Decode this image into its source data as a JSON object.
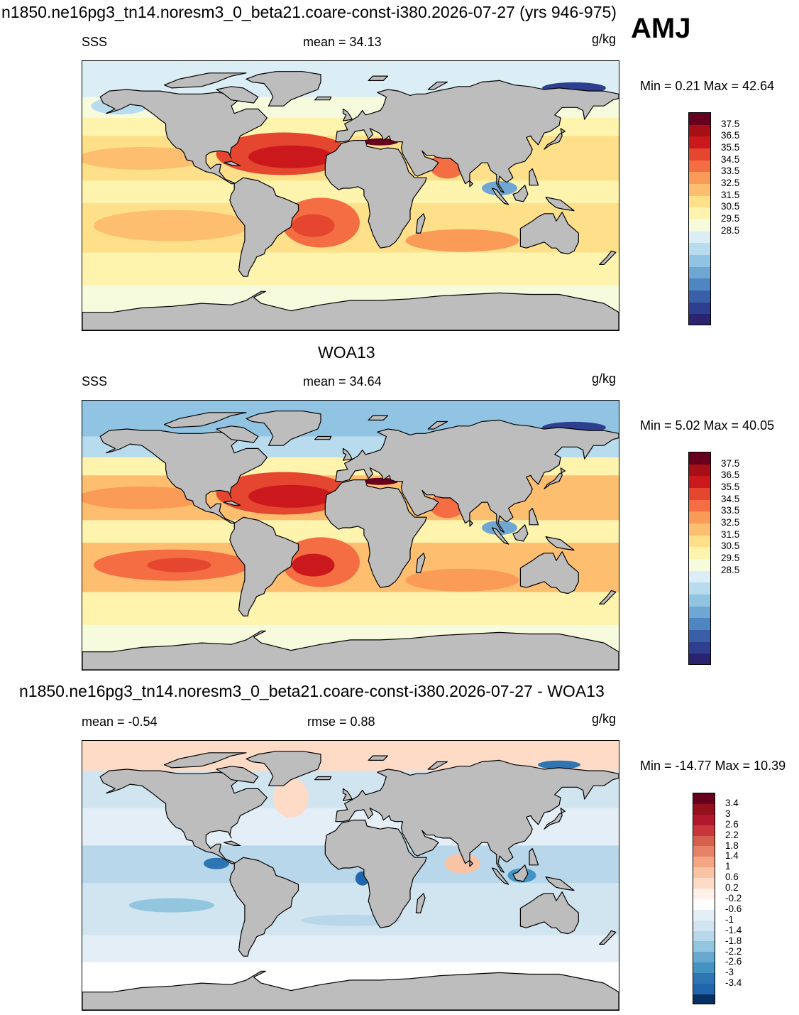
{
  "header": {
    "title": "n1850.ne16pg3_tn14.noresm3_0_beta21.coare-const-i380.2026-07-27 (yrs 946-975)",
    "season": "AMJ"
  },
  "panels": [
    {
      "subtitle": "",
      "left_label": "SSS",
      "center_label": "mean =  34.13",
      "units": "g/kg",
      "minmax": "Min =   0.21 Max =  42.64"
    },
    {
      "subtitle": "WOA13",
      "left_label": "SSS",
      "center_label": "mean =  34.64",
      "units": "g/kg",
      "minmax": "Min =   5.02 Max =  40.05"
    },
    {
      "subtitle": "n1850.ne16pg3_tn14.noresm3_0_beta21.coare-const-i380.2026-07-27 - WOA13",
      "left_label": "mean =  -0.54",
      "center_label": "rmse =   0.88",
      "units": "g/kg",
      "minmax": "Min = -14.77 Max =  10.39"
    }
  ],
  "chart_data": [
    {
      "type": "heatmap",
      "title": "n1850.ne16pg3_tn14.noresm3_0_beta21.coare-const-i380.2026-07-27 (yrs 946-975)",
      "variable": "SSS",
      "units": "g/kg",
      "mean": 34.13,
      "min": 0.21,
      "max": 42.64,
      "colorbar": {
        "labels": [
          "37.5",
          "36.5",
          "35.5",
          "34.5",
          "33.5",
          "32.5",
          "31.5",
          "30.5",
          "29.5",
          "28.5"
        ],
        "colors": [
          "#67001f",
          "#a50f15",
          "#cb181d",
          "#e5462f",
          "#f46d43",
          "#fa9b58",
          "#fdbe6f",
          "#fee08b",
          "#fff4ae",
          "#f5fbdc",
          "#dbeef6",
          "#b8dcee",
          "#91c3e2",
          "#6fa7d2",
          "#4e86c2",
          "#3a5fa8",
          "#2e3f8f",
          "#2a2370"
        ]
      }
    },
    {
      "type": "heatmap",
      "title": "WOA13",
      "variable": "SSS",
      "units": "g/kg",
      "mean": 34.64,
      "min": 5.02,
      "max": 40.05,
      "colorbar": {
        "labels": [
          "37.5",
          "36.5",
          "35.5",
          "34.5",
          "33.5",
          "32.5",
          "31.5",
          "30.5",
          "29.5",
          "28.5"
        ],
        "colors": [
          "#67001f",
          "#a50f15",
          "#cb181d",
          "#e5462f",
          "#f46d43",
          "#fa9b58",
          "#fdbe6f",
          "#fee08b",
          "#fff4ae",
          "#f5fbdc",
          "#dbeef6",
          "#b8dcee",
          "#91c3e2",
          "#6fa7d2",
          "#4e86c2",
          "#3a5fa8",
          "#2e3f8f",
          "#2a2370"
        ]
      }
    },
    {
      "type": "heatmap",
      "title": "n1850.ne16pg3_tn14.noresm3_0_beta21.coare-const-i380.2026-07-27 - WOA13",
      "units": "g/kg",
      "mean": -0.54,
      "rmse": 0.88,
      "min": -14.77,
      "max": 10.39,
      "colorbar": {
        "labels": [
          "3.4",
          "3",
          "2.6",
          "2.2",
          "1.8",
          "1.4",
          "1",
          "0.6",
          "0.2",
          "-0.2",
          "-0.6",
          "-1",
          "-1.4",
          "-1.8",
          "-2.2",
          "-2.6",
          "-3",
          "-3.4"
        ],
        "colors": [
          "#67001f",
          "#94101f",
          "#b2182b",
          "#c9363c",
          "#d6604d",
          "#e58267",
          "#f4a582",
          "#f9c4a6",
          "#fddbc7",
          "#fff0e8",
          "#ffffff",
          "#e3eef6",
          "#d1e5f0",
          "#b9d7ea",
          "#92c5de",
          "#6aa9cf",
          "#4393c3",
          "#2d75b3",
          "#2166ac",
          "#053061"
        ]
      },
      "land_color": "#bdbdbd"
    }
  ]
}
